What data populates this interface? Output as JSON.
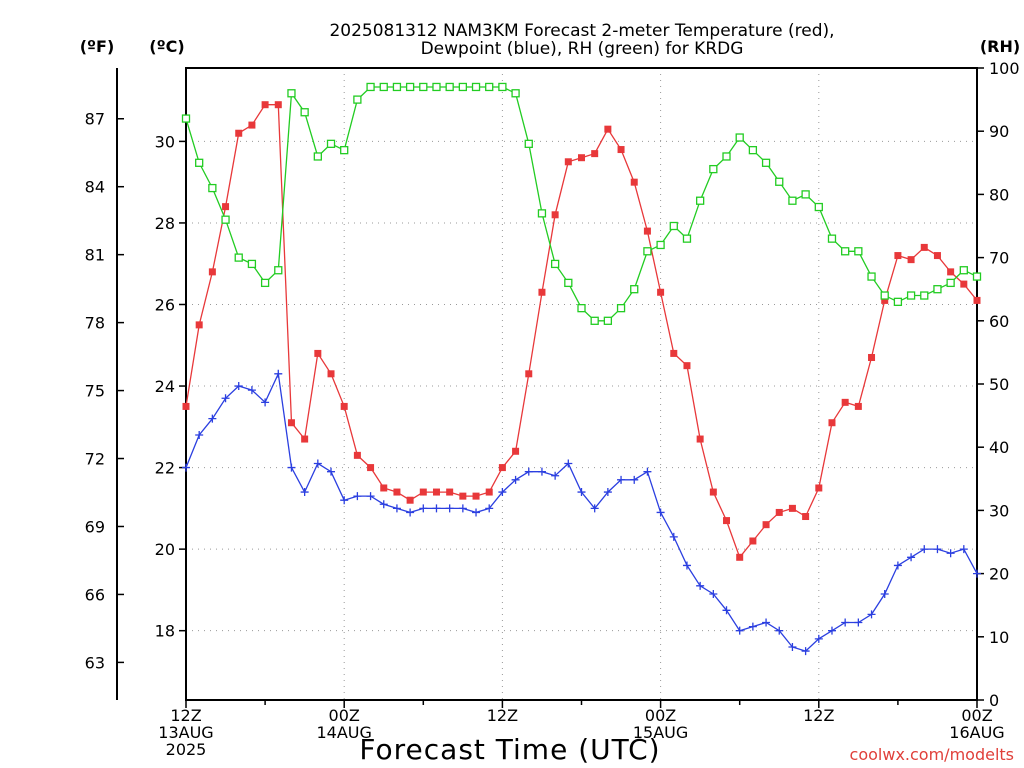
{
  "title_lines": [
    "2025081312 NAM3KM Forecast 2-meter Temperature (red),",
    "Dewpoint (blue), RH (green) for KRDG"
  ],
  "units": {
    "fahrenheit": "(ºF)",
    "celsius": "(ºC)",
    "rh": "(RH)"
  },
  "credit": "coolwx.com/modelts",
  "colors": {
    "temperature": "#e8383a",
    "dewpoint": "#2b3fe0",
    "rh": "#22cc22",
    "grid": "#999999"
  },
  "chart_data": {
    "type": "line",
    "title": "2025081312 NAM3KM Forecast 2-meter Temperature (red), Dewpoint (blue), RH (green) for KRDG",
    "xlabel": "Forecast Time (UTC)",
    "x_ticks": [
      {
        "hour": 0,
        "lines": [
          "12Z",
          "13AUG",
          "2025"
        ]
      },
      {
        "hour": 12,
        "lines": [
          "00Z",
          "14AUG"
        ]
      },
      {
        "hour": 24,
        "lines": [
          "12Z"
        ]
      },
      {
        "hour": 36,
        "lines": [
          "00Z",
          "15AUG"
        ]
      },
      {
        "hour": 48,
        "lines": [
          "12Z"
        ]
      },
      {
        "hour": 60,
        "lines": [
          "00Z",
          "16AUG"
        ]
      }
    ],
    "xlim_hours_from_2025081312": [
      0,
      60
    ],
    "y_left_celsius": {
      "ylim": [
        16.3,
        31.8
      ],
      "ticks": [
        18,
        20,
        22,
        24,
        26,
        28,
        30
      ]
    },
    "y_left_fahrenheit": {
      "ticks": [
        63,
        66,
        69,
        72,
        75,
        78,
        81,
        84,
        87
      ]
    },
    "y_right_rh": {
      "ylim": [
        0,
        100
      ],
      "ticks": [
        0,
        10,
        20,
        30,
        40,
        50,
        60,
        70,
        80,
        90,
        100
      ]
    },
    "grid": true,
    "x_hours": [
      0,
      1,
      2,
      3,
      4,
      5,
      6,
      7,
      8,
      9,
      10,
      11,
      12,
      13,
      14,
      15,
      16,
      17,
      18,
      19,
      20,
      21,
      22,
      23,
      24,
      25,
      26,
      27,
      28,
      29,
      30,
      31,
      32,
      33,
      34,
      35,
      36,
      37,
      38,
      39,
      40,
      41,
      42,
      43,
      44,
      45,
      46,
      47,
      48,
      49,
      50,
      51,
      52,
      53,
      54,
      55,
      56,
      57,
      58,
      59,
      60
    ],
    "series": [
      {
        "name": "2-meter Temperature",
        "units": "°C",
        "axis": "left",
        "marker": "filled-square",
        "values": [
          23.5,
          25.5,
          26.8,
          28.4,
          30.2,
          30.4,
          30.9,
          30.9,
          23.1,
          22.7,
          24.8,
          24.3,
          23.5,
          22.3,
          22.0,
          21.5,
          21.4,
          21.2,
          21.4,
          21.4,
          21.4,
          21.3,
          21.3,
          21.4,
          22.0,
          22.4,
          24.3,
          26.3,
          28.2,
          29.5,
          29.6,
          29.7,
          30.3,
          29.8,
          29.0,
          27.8,
          26.3,
          24.8,
          24.5,
          22.7,
          21.4,
          20.7,
          19.8,
          20.2,
          20.6,
          20.9,
          21.0,
          20.8,
          21.5,
          23.1,
          23.6,
          23.5,
          24.7,
          26.1,
          27.2,
          27.1,
          27.4,
          27.2,
          26.8,
          26.5,
          26.1
        ]
      },
      {
        "name": "Dewpoint",
        "units": "°C",
        "axis": "left",
        "marker": "plus",
        "values": [
          22.0,
          22.8,
          23.2,
          23.7,
          24.0,
          23.9,
          23.6,
          24.3,
          22.0,
          21.4,
          22.1,
          21.9,
          21.2,
          21.3,
          21.3,
          21.1,
          21.0,
          20.9,
          21.0,
          21.0,
          21.0,
          21.0,
          20.9,
          21.0,
          21.4,
          21.7,
          21.9,
          21.9,
          21.8,
          22.1,
          21.4,
          21.0,
          21.4,
          21.7,
          21.7,
          21.9,
          20.9,
          20.3,
          19.6,
          19.1,
          18.9,
          18.5,
          18.0,
          18.1,
          18.2,
          18.0,
          17.6,
          17.5,
          17.8,
          18.0,
          18.2,
          18.2,
          18.4,
          18.9,
          19.6,
          19.8,
          20.0,
          20.0,
          19.9,
          20.0,
          19.4
        ]
      },
      {
        "name": "RH",
        "units": "%",
        "axis": "right",
        "marker": "open-square",
        "values": [
          92,
          85,
          81,
          76,
          70,
          69,
          66,
          68,
          96,
          93,
          86,
          88,
          87,
          95,
          97,
          97,
          97,
          97,
          97,
          97,
          97,
          97,
          97,
          97,
          97,
          96,
          88,
          77,
          69,
          66,
          62,
          60,
          60,
          62,
          65,
          71,
          72,
          75,
          73,
          79,
          84,
          86,
          89,
          87,
          85,
          82,
          79,
          80,
          78,
          73,
          71,
          71,
          67,
          64,
          63,
          64,
          64,
          65,
          66,
          68,
          67
        ]
      }
    ]
  }
}
